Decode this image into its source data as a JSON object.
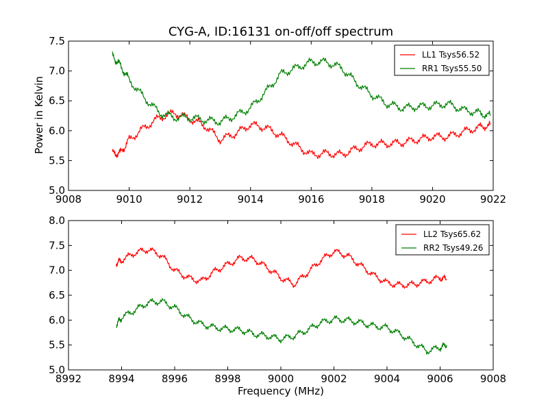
{
  "chart_data": [
    {
      "type": "line",
      "title": "CYG-A, ID:16131 on-off/off spectrum",
      "xlabel": "",
      "ylabel": "Power in Kelvin",
      "xlim": [
        9008,
        9022
      ],
      "ylim": [
        5.0,
        7.5
      ],
      "x_ticks": [
        "9008",
        "9010",
        "9012",
        "9014",
        "9016",
        "9018",
        "9020",
        "9022"
      ],
      "y_ticks": [
        "5.0",
        "5.5",
        "6.0",
        "6.5",
        "7.0",
        "7.5"
      ],
      "grid": false,
      "legend_position": "top-right",
      "series": [
        {
          "name": "LL1 Tsys56.52",
          "color": "#ff0000",
          "x": [
            9009.45,
            9009.7,
            9010.0,
            9010.5,
            9011.0,
            9011.5,
            9012.0,
            9012.5,
            9013.0,
            9013.5,
            9014.0,
            9014.5,
            9015.0,
            9015.5,
            9016.0,
            9016.5,
            9017.0,
            9017.5,
            9018.0,
            9018.5,
            9019.0,
            9019.5,
            9020.0,
            9020.5,
            9021.0,
            9021.5,
            9021.9
          ],
          "values": [
            5.62,
            5.62,
            5.85,
            6.05,
            6.22,
            6.3,
            6.2,
            6.08,
            5.85,
            5.95,
            6.1,
            6.05,
            5.92,
            5.75,
            5.6,
            5.62,
            5.6,
            5.7,
            5.78,
            5.78,
            5.8,
            5.85,
            5.9,
            5.9,
            5.98,
            6.05,
            6.1
          ]
        },
        {
          "name": "RR1 Tsys55.50",
          "color": "#008000",
          "x": [
            9009.45,
            9009.7,
            9010.0,
            9010.5,
            9011.0,
            9011.5,
            9012.0,
            9012.5,
            9013.0,
            9013.5,
            9014.0,
            9014.5,
            9015.0,
            9015.5,
            9016.0,
            9016.5,
            9017.0,
            9017.5,
            9018.0,
            9018.5,
            9019.0,
            9019.5,
            9020.0,
            9020.5,
            9021.0,
            9021.5,
            9021.9
          ],
          "values": [
            7.25,
            7.1,
            6.85,
            6.55,
            6.3,
            6.22,
            6.22,
            6.18,
            6.15,
            6.25,
            6.38,
            6.65,
            6.95,
            7.05,
            7.15,
            7.15,
            7.05,
            6.8,
            6.6,
            6.45,
            6.38,
            6.4,
            6.42,
            6.45,
            6.35,
            6.3,
            6.25
          ]
        }
      ]
    },
    {
      "type": "line",
      "title": "",
      "xlabel": "Frequency (MHz)",
      "ylabel": "",
      "xlim": [
        8992,
        9008
      ],
      "ylim": [
        5.0,
        8.0
      ],
      "x_ticks": [
        "8992",
        "8994",
        "8996",
        "8998",
        "9000",
        "9002",
        "9004",
        "9006",
        "9008"
      ],
      "y_ticks": [
        "5.0",
        "5.5",
        "6.0",
        "6.5",
        "7.0",
        "7.5",
        "8.0"
      ],
      "grid": false,
      "legend_position": "top-right",
      "series": [
        {
          "name": "LL2 Tsys65.62",
          "color": "#ff0000",
          "x": [
            8993.8,
            8994.0,
            8994.5,
            8995.0,
            8995.5,
            8996.0,
            8996.5,
            8997.0,
            8997.5,
            8998.0,
            8998.5,
            8999.0,
            8999.5,
            9000.0,
            9000.5,
            9001.0,
            9001.5,
            9002.0,
            9002.5,
            9003.0,
            9003.5,
            9004.0,
            9004.5,
            9005.0,
            9005.5,
            9006.0,
            9006.25
          ],
          "values": [
            7.15,
            7.2,
            7.35,
            7.42,
            7.3,
            7.0,
            6.85,
            6.78,
            6.98,
            7.12,
            7.25,
            7.22,
            7.05,
            6.85,
            6.72,
            6.95,
            7.2,
            7.38,
            7.3,
            7.1,
            6.9,
            6.75,
            6.7,
            6.72,
            6.78,
            6.85,
            6.82
          ]
        },
        {
          "name": "RR2 Tsys49.26",
          "color": "#008000",
          "x": [
            8993.8,
            8994.0,
            8994.5,
            8995.0,
            8995.5,
            8996.0,
            8996.5,
            8997.0,
            8997.5,
            8998.0,
            8998.5,
            8999.0,
            8999.5,
            9000.0,
            9000.5,
            9001.0,
            9001.5,
            9002.0,
            9002.5,
            9003.0,
            9003.5,
            9004.0,
            9004.5,
            9005.0,
            9005.5,
            9006.0,
            9006.25
          ],
          "values": [
            5.9,
            6.05,
            6.2,
            6.35,
            6.38,
            6.25,
            6.05,
            5.92,
            5.85,
            5.82,
            5.8,
            5.72,
            5.68,
            5.62,
            5.68,
            5.8,
            5.95,
            6.02,
            6.0,
            5.95,
            5.88,
            5.85,
            5.72,
            5.55,
            5.38,
            5.45,
            5.5
          ]
        }
      ]
    }
  ]
}
